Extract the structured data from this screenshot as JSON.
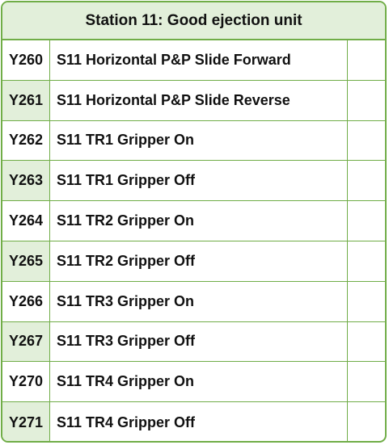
{
  "header": {
    "title": "Station 11: Good ejection unit"
  },
  "rows": [
    {
      "address": "Y260",
      "description": "S11 Horizontal P&P Slide Forward"
    },
    {
      "address": "Y261",
      "description": "S11 Horizontal P&P Slide Reverse"
    },
    {
      "address": "Y262",
      "description": "S11 TR1 Gripper On"
    },
    {
      "address": "Y263",
      "description": "S11 TR1 Gripper Off"
    },
    {
      "address": "Y264",
      "description": "S11 TR2 Gripper On"
    },
    {
      "address": "Y265",
      "description": "S11 TR2 Gripper Off"
    },
    {
      "address": "Y266",
      "description": "S11 TR3 Gripper On"
    },
    {
      "address": "Y267",
      "description": "S11 TR3 Gripper Off"
    },
    {
      "address": "Y270",
      "description": "S11 TR4 Gripper On"
    },
    {
      "address": "Y271",
      "description": "S11 TR4 Gripper Off"
    }
  ],
  "colors": {
    "border": "#70ad47",
    "header_fill": "#e2efda",
    "alt_address_fill": "#e2efda"
  }
}
